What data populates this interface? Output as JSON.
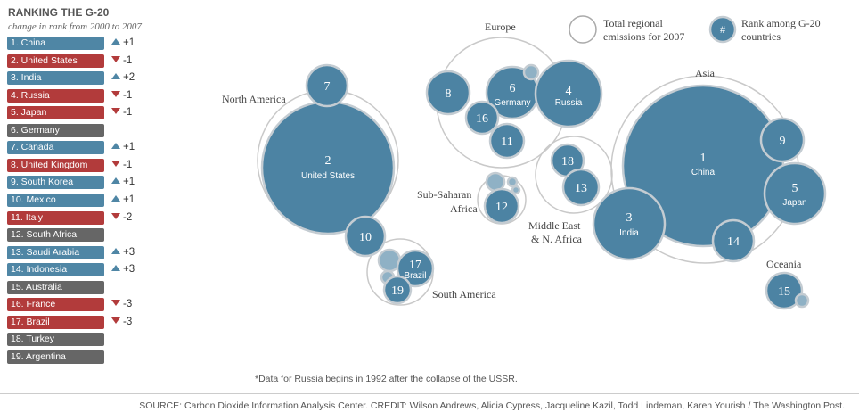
{
  "title": "RANKING THE G-20",
  "subtitle": "change in rank from 2000 to 2007",
  "colors": {
    "increase": "#4f86a5",
    "decrease": "#b23b3b",
    "same": "#666666",
    "bubble": "#4c83a3",
    "bubble_stroke": "#c4ccd2"
  },
  "rankings": [
    {
      "label": "1. China",
      "change": "+1",
      "trend": "up"
    },
    {
      "label": "2. United States",
      "change": "-1",
      "trend": "down"
    },
    {
      "label": "3. India",
      "change": "+2",
      "trend": "up"
    },
    {
      "label": "4. Russia",
      "change": "-1",
      "trend": "down"
    },
    {
      "label": "5. Japan",
      "change": "-1",
      "trend": "down"
    },
    {
      "label": "6. Germany",
      "change": "",
      "trend": "same"
    },
    {
      "label": "7. Canada",
      "change": "+1",
      "trend": "up"
    },
    {
      "label": "8. United Kingdom",
      "change": "-1",
      "trend": "down"
    },
    {
      "label": "9. South Korea",
      "change": "+1",
      "trend": "up"
    },
    {
      "label": "10. Mexico",
      "change": "+1",
      "trend": "up"
    },
    {
      "label": "11. Italy",
      "change": "-2",
      "trend": "down"
    },
    {
      "label": "12. South Africa",
      "change": "",
      "trend": "same"
    },
    {
      "label": "13. Saudi Arabia",
      "change": "+3",
      "trend": "up"
    },
    {
      "label": "14. Indonesia",
      "change": "+3",
      "trend": "up"
    },
    {
      "label": "15. Australia",
      "change": "",
      "trend": "same"
    },
    {
      "label": "16. France",
      "change": "-3",
      "trend": "down"
    },
    {
      "label": "17. Brazil",
      "change": "-3",
      "trend": "down"
    },
    {
      "label": "18. Turkey",
      "change": "",
      "trend": "same"
    },
    {
      "label": "19. Argentina",
      "change": "",
      "trend": "same"
    }
  ],
  "legend": {
    "total_label_1": "Total regional",
    "total_label_2": "emissions for 2007",
    "rank_symbol": "#",
    "rank_label_1": "Rank among G-20",
    "rank_label_2": "countries"
  },
  "regions": {
    "north_america": "North America",
    "europe": "Europe",
    "asia": "Asia",
    "sub_saharan_1": "Sub-Saharan",
    "sub_saharan_2": "Africa",
    "middle_east_1": "Middle East",
    "middle_east_2": "& N. Africa",
    "south_america": "South America",
    "oceania": "Oceania"
  },
  "bubbles": {
    "us": {
      "rank": "2",
      "name": "United States"
    },
    "canada": {
      "rank": "7"
    },
    "mexico": {
      "rank": "10"
    },
    "brazil": {
      "rank": "17",
      "name": "Brazil"
    },
    "argentina": {
      "rank": "19"
    },
    "uk": {
      "rank": "8"
    },
    "germany": {
      "rank": "6",
      "name": "Germany"
    },
    "russia": {
      "rank": "4",
      "name": "Russia"
    },
    "france": {
      "rank": "16"
    },
    "italy": {
      "rank": "11"
    },
    "turkey": {
      "rank": "18"
    },
    "saudi": {
      "rank": "13"
    },
    "south_africa": {
      "rank": "12"
    },
    "china": {
      "rank": "1",
      "name": "China"
    },
    "india": {
      "rank": "3",
      "name": "India"
    },
    "japan": {
      "rank": "5",
      "name": "Japan"
    },
    "korea": {
      "rank": "9"
    },
    "indonesia": {
      "rank": "14"
    },
    "australia": {
      "rank": "15"
    }
  },
  "footnote": "*Data for Russia begins in 1992 after the collapse of the USSR.",
  "source": "SOURCE: Carbon Dioxide Information Analysis Center. CREDIT: Wilson Andrews, Alicia Cypress, Jacqueline Kazil, Todd Lindeman, Karen Yourish / The Washington Post."
}
